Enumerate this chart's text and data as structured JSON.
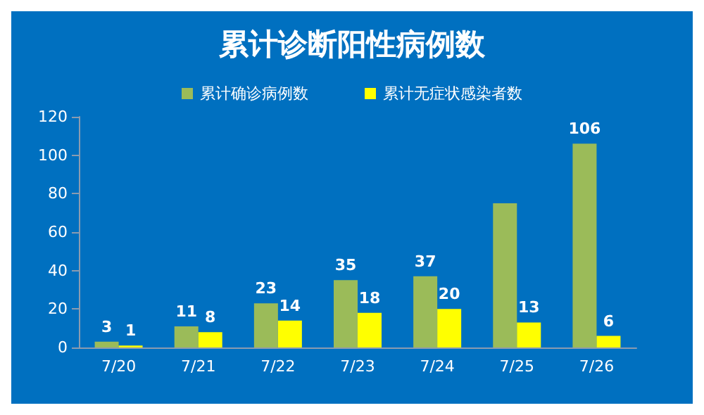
{
  "chart_data": {
    "type": "bar",
    "title": "累计诊断阳性病例数",
    "categories": [
      "7/20",
      "7/21",
      "7/22",
      "7/23",
      "7/24",
      "7/25",
      "7/26"
    ],
    "series": [
      {
        "name": "累计确诊病例数",
        "color": "#9bbb59",
        "values": [
          3,
          11,
          23,
          35,
          37,
          75,
          106
        ],
        "value_labels": [
          "3",
          "11",
          "23",
          "35",
          "37",
          null,
          "106"
        ]
      },
      {
        "name": "累计无症状感染者数",
        "color": "#ffff00",
        "values": [
          1,
          8,
          14,
          18,
          20,
          13,
          6
        ],
        "value_labels": [
          "1",
          "8",
          "14",
          "18",
          "20",
          "13",
          "6"
        ]
      }
    ],
    "ylim": [
      0,
      120
    ],
    "yticks": [
      0,
      20,
      40,
      60,
      80,
      100,
      120
    ],
    "grid": false,
    "legend": "top"
  }
}
